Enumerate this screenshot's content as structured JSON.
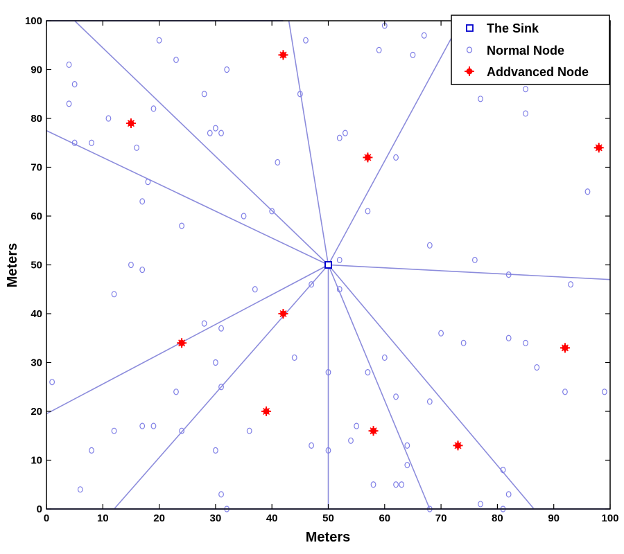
{
  "chart_data": {
    "type": "scatter",
    "title": "",
    "xlabel": "Meters",
    "ylabel": "Meters",
    "xlim": [
      0,
      100
    ],
    "ylim": [
      0,
      100
    ],
    "x_ticks": [
      0,
      10,
      20,
      30,
      40,
      50,
      60,
      70,
      80,
      90,
      100
    ],
    "y_ticks": [
      0,
      10,
      20,
      30,
      40,
      50,
      60,
      70,
      80,
      90,
      100
    ],
    "grid": false,
    "legend_position": "top-right",
    "legend": [
      "The Sink",
      "Normal Node",
      "Addvanced Node"
    ],
    "colors": {
      "sink": "#0000cc",
      "normal": "#7f7fe6",
      "advanced": "#ff0000",
      "lines": "#8c8cdc"
    },
    "series": [
      {
        "name": "The Sink",
        "marker": "square",
        "points": [
          [
            50,
            50
          ]
        ]
      },
      {
        "name": "Normal Node",
        "marker": "circle",
        "points": [
          [
            1,
            26
          ],
          [
            4,
            91
          ],
          [
            5,
            87
          ],
          [
            4,
            83
          ],
          [
            5,
            75
          ],
          [
            8,
            75
          ],
          [
            6,
            4
          ],
          [
            8,
            12
          ],
          [
            11,
            80
          ],
          [
            12,
            44
          ],
          [
            12,
            16
          ],
          [
            15,
            50
          ],
          [
            16,
            74
          ],
          [
            17,
            63
          ],
          [
            17,
            49
          ],
          [
            17,
            17
          ],
          [
            18,
            67
          ],
          [
            19,
            82
          ],
          [
            19,
            17
          ],
          [
            20,
            96
          ],
          [
            23,
            92
          ],
          [
            23,
            24
          ],
          [
            24,
            58
          ],
          [
            24,
            16
          ],
          [
            28,
            85
          ],
          [
            28,
            38
          ],
          [
            29,
            77
          ],
          [
            30,
            78
          ],
          [
            30,
            30
          ],
          [
            30,
            12
          ],
          [
            31,
            77
          ],
          [
            31,
            37
          ],
          [
            31,
            25
          ],
          [
            31,
            3
          ],
          [
            32,
            90
          ],
          [
            32,
            0
          ],
          [
            35,
            60
          ],
          [
            36,
            16
          ],
          [
            37,
            45
          ],
          [
            40,
            61
          ],
          [
            41,
            71
          ],
          [
            44,
            31
          ],
          [
            45,
            85
          ],
          [
            46,
            96
          ],
          [
            47,
            46
          ],
          [
            47,
            13
          ],
          [
            50,
            28
          ],
          [
            50,
            12
          ],
          [
            52,
            76
          ],
          [
            52,
            51
          ],
          [
            52,
            45
          ],
          [
            53,
            77
          ],
          [
            54,
            14
          ],
          [
            55,
            17
          ],
          [
            57,
            61
          ],
          [
            57,
            28
          ],
          [
            58,
            5
          ],
          [
            59,
            94
          ],
          [
            60,
            99
          ],
          [
            60,
            31
          ],
          [
            62,
            72
          ],
          [
            62,
            23
          ],
          [
            62,
            5
          ],
          [
            63,
            5
          ],
          [
            64,
            13
          ],
          [
            64,
            9
          ],
          [
            65,
            93
          ],
          [
            67,
            97
          ],
          [
            68,
            54
          ],
          [
            68,
            22
          ],
          [
            68,
            0
          ],
          [
            70,
            36
          ],
          [
            74,
            34
          ],
          [
            76,
            51
          ],
          [
            77,
            84
          ],
          [
            77,
            1
          ],
          [
            81,
            8
          ],
          [
            81,
            0
          ],
          [
            82,
            48
          ],
          [
            82,
            35
          ],
          [
            82,
            3
          ],
          [
            85,
            86
          ],
          [
            85,
            81
          ],
          [
            85,
            34
          ],
          [
            87,
            29
          ],
          [
            92,
            24
          ],
          [
            93,
            46
          ],
          [
            96,
            65
          ],
          [
            99,
            24
          ]
        ]
      },
      {
        "name": "Addvanced Node",
        "marker": "star",
        "points": [
          [
            15,
            79
          ],
          [
            24,
            34
          ],
          [
            39,
            20
          ],
          [
            42,
            93
          ],
          [
            42,
            40
          ],
          [
            57,
            72
          ],
          [
            58,
            16
          ],
          [
            73,
            13
          ],
          [
            92,
            33
          ],
          [
            98,
            74
          ]
        ]
      }
    ],
    "sector_lines": [
      [
        [
          50,
          50
        ],
        [
          5,
          100
        ]
      ],
      [
        [
          50,
          50
        ],
        [
          0,
          77.5
        ]
      ],
      [
        [
          50,
          50
        ],
        [
          0,
          19.5
        ]
      ],
      [
        [
          50,
          50
        ],
        [
          12,
          0
        ]
      ],
      [
        [
          50,
          50
        ],
        [
          50,
          0
        ]
      ],
      [
        [
          50,
          50
        ],
        [
          68,
          0
        ]
      ],
      [
        [
          50,
          50
        ],
        [
          86.5,
          0
        ]
      ],
      [
        [
          50,
          50
        ],
        [
          100,
          47
        ]
      ],
      [
        [
          50,
          50
        ],
        [
          73.5,
          100
        ]
      ],
      [
        [
          50,
          50
        ],
        [
          43,
          100
        ]
      ]
    ]
  }
}
